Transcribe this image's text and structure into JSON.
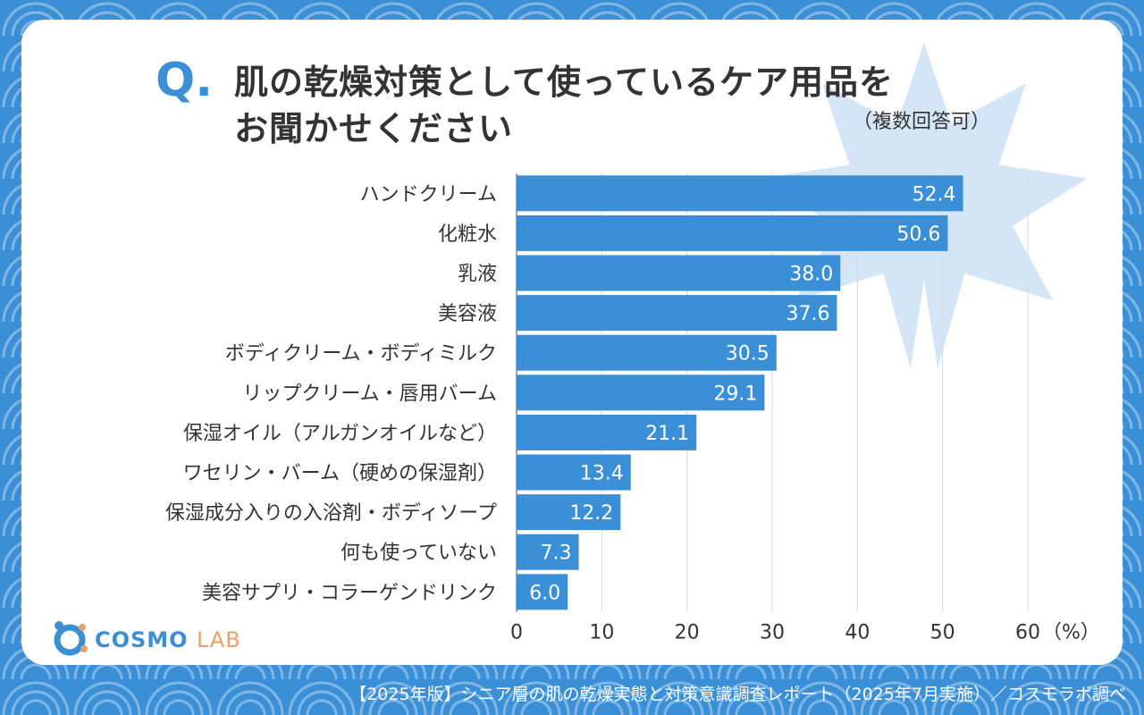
{
  "header": {
    "q_mark": "Q.",
    "title_line1": "肌の乾燥対策として使っているケア用品を",
    "title_line2": "お聞かせください",
    "note": "（複数回答可）"
  },
  "chart_data": {
    "type": "bar",
    "orientation": "horizontal",
    "categories": [
      "ハンドクリーム",
      "化粧水",
      "乳液",
      "美容液",
      "ボディクリーム・ボディミルク",
      "リップクリーム・唇用バーム",
      "保湿オイル（アルガンオイルなど）",
      "ワセリン・バーム（硬めの保湿剤）",
      "保湿成分入りの入浴剤・ボディソープ",
      "何も使っていない",
      "美容サプリ・コラーゲンドリンク"
    ],
    "values": [
      52.4,
      50.6,
      38.0,
      37.6,
      30.5,
      29.1,
      21.1,
      13.4,
      12.2,
      7.3,
      6.0
    ],
    "value_labels": [
      "52.4",
      "50.6",
      "38.0",
      "37.6",
      "30.5",
      "29.1",
      "21.1",
      "13.4",
      "12.2",
      "7.3",
      "6.0"
    ],
    "x_ticks": [
      "0",
      "10",
      "20",
      "30",
      "40",
      "50",
      "60"
    ],
    "xlim": [
      0,
      60
    ],
    "unit_label": "（%）",
    "bar_color": "#3a8fd6",
    "grid": true
  },
  "logo": {
    "brand": "COSMO",
    "sub": "LAB"
  },
  "footer": {
    "source": "【2025年版】シニア層の肌の乾燥実態と対策意識調査レポート（2025年7月実施）／コスモラボ調べ"
  },
  "colors": {
    "accent": "#3a8fd6",
    "leaf": "#cfe3f5",
    "text": "#333333",
    "logo_orange": "#e8a06a"
  }
}
